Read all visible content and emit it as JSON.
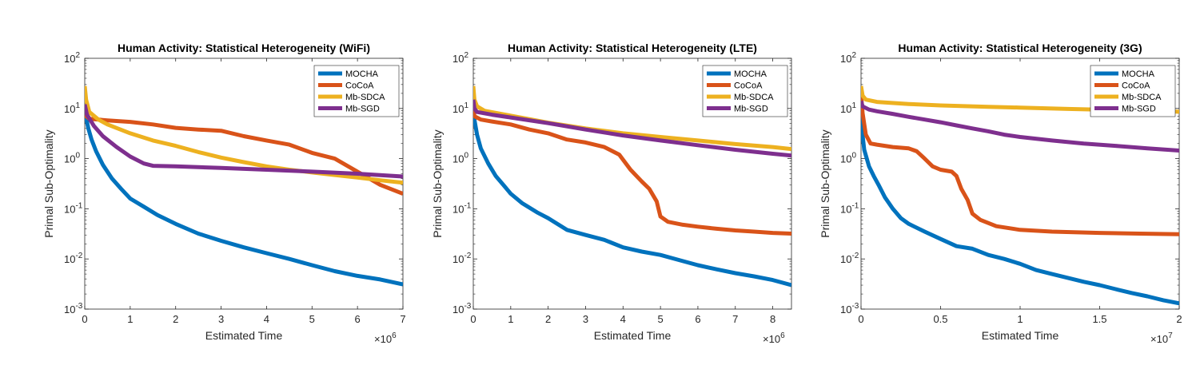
{
  "colors": {
    "MOCHA": "#0072BD",
    "CoCoA": "#D95319",
    "Mb-SDCA": "#EDB120",
    "Mb-SGD": "#7E2F8E"
  },
  "chart_data": [
    {
      "type": "line",
      "title": "Human Activity: Statistical Heterogeneity (WiFi)",
      "xlabel": "Estimated Time",
      "ylabel": "Primal Sub-Optimality",
      "x_multiplier_label": "×10",
      "x_multiplier_exp": "6",
      "xlim": [
        0,
        7000000
      ],
      "ylim": [
        0.001,
        100
      ],
      "yscale": "log",
      "xticks": [
        0,
        1000000,
        2000000,
        3000000,
        4000000,
        5000000,
        6000000,
        7000000
      ],
      "xtick_labels": [
        "0",
        "1",
        "2",
        "3",
        "4",
        "5",
        "6",
        "7"
      ],
      "yticks": [
        0.001,
        0.01,
        0.1,
        1,
        10,
        100
      ],
      "ytick_exps": [
        "-3",
        "-2",
        "-1",
        "0",
        "1",
        "2"
      ],
      "ytick_base": "10",
      "legend_position": "top-right",
      "series": [
        {
          "name": "MOCHA",
          "points": [
            [
              0,
              12
            ],
            [
              30000,
              6.5
            ],
            [
              80000,
              4
            ],
            [
              150000,
              2.4
            ],
            [
              250000,
              1.4
            ],
            [
              400000,
              0.75
            ],
            [
              600000,
              0.4
            ],
            [
              800000,
              0.25
            ],
            [
              1000000,
              0.16
            ],
            [
              1300000,
              0.11
            ],
            [
              1600000,
              0.075
            ],
            [
              2000000,
              0.05
            ],
            [
              2500000,
              0.032
            ],
            [
              3000000,
              0.023
            ],
            [
              3500000,
              0.017
            ],
            [
              4000000,
              0.013
            ],
            [
              4500000,
              0.01
            ],
            [
              5000000,
              0.0075
            ],
            [
              5500000,
              0.0057
            ],
            [
              6000000,
              0.0046
            ],
            [
              6500000,
              0.0039
            ],
            [
              7000000,
              0.0031
            ]
          ]
        },
        {
          "name": "CoCoA",
          "points": [
            [
              0,
              9
            ],
            [
              30000,
              7
            ],
            [
              100000,
              6.2
            ],
            [
              500000,
              5.8
            ],
            [
              1000000,
              5.4
            ],
            [
              1500000,
              4.8
            ],
            [
              2000000,
              4.1
            ],
            [
              2500000,
              3.8
            ],
            [
              3000000,
              3.6
            ],
            [
              3500000,
              2.8
            ],
            [
              4000000,
              2.3
            ],
            [
              4500000,
              1.9
            ],
            [
              5000000,
              1.3
            ],
            [
              5500000,
              1.0
            ],
            [
              6000000,
              0.55
            ],
            [
              6500000,
              0.3
            ],
            [
              7000000,
              0.2
            ]
          ]
        },
        {
          "name": "Mb-SDCA",
          "points": [
            [
              0,
              28
            ],
            [
              30000,
              15
            ],
            [
              100000,
              8.5
            ],
            [
              300000,
              6
            ],
            [
              500000,
              4.8
            ],
            [
              1000000,
              3.2
            ],
            [
              1500000,
              2.3
            ],
            [
              2000000,
              1.8
            ],
            [
              2500000,
              1.35
            ],
            [
              3000000,
              1.05
            ],
            [
              3500000,
              0.85
            ],
            [
              4000000,
              0.7
            ],
            [
              4500000,
              0.6
            ],
            [
              5000000,
              0.53
            ],
            [
              5500000,
              0.47
            ],
            [
              6000000,
              0.42
            ],
            [
              6500000,
              0.37
            ],
            [
              7000000,
              0.33
            ]
          ]
        },
        {
          "name": "Mb-SGD",
          "points": [
            [
              0,
              12
            ],
            [
              50000,
              7.5
            ],
            [
              200000,
              4.5
            ],
            [
              400000,
              2.8
            ],
            [
              700000,
              1.7
            ],
            [
              1000000,
              1.1
            ],
            [
              1300000,
              0.8
            ],
            [
              1500000,
              0.72
            ],
            [
              2000000,
              0.7
            ],
            [
              3000000,
              0.65
            ],
            [
              4000000,
              0.6
            ],
            [
              5000000,
              0.55
            ],
            [
              6000000,
              0.5
            ],
            [
              7000000,
              0.44
            ]
          ]
        }
      ]
    },
    {
      "type": "line",
      "title": "Human Activity: Statistical Heterogeneity (LTE)",
      "xlabel": "Estimated Time",
      "ylabel": "Primal Sub-Optimality",
      "x_multiplier_label": "×10",
      "x_multiplier_exp": "6",
      "xlim": [
        0,
        8500000
      ],
      "ylim": [
        0.001,
        100
      ],
      "yscale": "log",
      "xticks": [
        0,
        1000000,
        2000000,
        3000000,
        4000000,
        5000000,
        6000000,
        7000000,
        8000000
      ],
      "xtick_labels": [
        "0",
        "1",
        "2",
        "3",
        "4",
        "5",
        "6",
        "7",
        "8"
      ],
      "yticks": [
        0.001,
        0.01,
        0.1,
        1,
        10,
        100
      ],
      "ytick_exps": [
        "-3",
        "-2",
        "-1",
        "0",
        "1",
        "2"
      ],
      "ytick_base": "10",
      "legend_position": "top-right",
      "series": [
        {
          "name": "MOCHA",
          "points": [
            [
              0,
              12
            ],
            [
              30000,
              6
            ],
            [
              100000,
              3
            ],
            [
              200000,
              1.6
            ],
            [
              400000,
              0.8
            ],
            [
              600000,
              0.45
            ],
            [
              800000,
              0.3
            ],
            [
              1000000,
              0.2
            ],
            [
              1300000,
              0.13
            ],
            [
              1700000,
              0.085
            ],
            [
              2000000,
              0.065
            ],
            [
              2500000,
              0.038
            ],
            [
              3000000,
              0.03
            ],
            [
              3500000,
              0.024
            ],
            [
              4000000,
              0.017
            ],
            [
              4500000,
              0.014
            ],
            [
              5000000,
              0.012
            ],
            [
              5500000,
              0.0095
            ],
            [
              6000000,
              0.0075
            ],
            [
              6500000,
              0.0062
            ],
            [
              7000000,
              0.0052
            ],
            [
              7500000,
              0.0045
            ],
            [
              8000000,
              0.0038
            ],
            [
              8500000,
              0.003
            ]
          ]
        },
        {
          "name": "CoCoA",
          "points": [
            [
              0,
              12
            ],
            [
              30000,
              7
            ],
            [
              200000,
              6
            ],
            [
              500000,
              5.5
            ],
            [
              1000000,
              4.8
            ],
            [
              1500000,
              3.8
            ],
            [
              2000000,
              3.2
            ],
            [
              2500000,
              2.4
            ],
            [
              3000000,
              2.1
            ],
            [
              3500000,
              1.7
            ],
            [
              3900000,
              1.2
            ],
            [
              4200000,
              0.6
            ],
            [
              4500000,
              0.35
            ],
            [
              4700000,
              0.25
            ],
            [
              4900000,
              0.14
            ],
            [
              5000000,
              0.07
            ],
            [
              5200000,
              0.055
            ],
            [
              5600000,
              0.048
            ],
            [
              6000000,
              0.044
            ],
            [
              6500000,
              0.04
            ],
            [
              7000000,
              0.037
            ],
            [
              7500000,
              0.035
            ],
            [
              8000000,
              0.033
            ],
            [
              8500000,
              0.032
            ]
          ]
        },
        {
          "name": "Mb-SDCA",
          "points": [
            [
              0,
              28
            ],
            [
              30000,
              15
            ],
            [
              100000,
              11
            ],
            [
              300000,
              9
            ],
            [
              1000000,
              7.2
            ],
            [
              2000000,
              5.2
            ],
            [
              3000000,
              4.0
            ],
            [
              4000000,
              3.2
            ],
            [
              5000000,
              2.7
            ],
            [
              6000000,
              2.3
            ],
            [
              7000000,
              1.95
            ],
            [
              8000000,
              1.7
            ],
            [
              8500000,
              1.55
            ]
          ]
        },
        {
          "name": "Mb-SGD",
          "points": [
            [
              0,
              15
            ],
            [
              30000,
              10
            ],
            [
              100000,
              8.5
            ],
            [
              500000,
              7.5
            ],
            [
              1000000,
              6.6
            ],
            [
              2000000,
              5.1
            ],
            [
              3000000,
              3.8
            ],
            [
              4000000,
              2.9
            ],
            [
              5000000,
              2.3
            ],
            [
              6000000,
              1.85
            ],
            [
              7000000,
              1.5
            ],
            [
              8000000,
              1.25
            ],
            [
              8500000,
              1.15
            ]
          ]
        }
      ]
    },
    {
      "type": "line",
      "title": "Human Activity: Statistical Heterogeneity (3G)",
      "xlabel": "Estimated Time",
      "ylabel": "Primal Sub-Optimality",
      "x_multiplier_label": "×10",
      "x_multiplier_exp": "7",
      "xlim": [
        0,
        20000000
      ],
      "ylim": [
        0.001,
        100
      ],
      "yscale": "log",
      "xticks": [
        0,
        5000000,
        10000000,
        15000000,
        20000000
      ],
      "xtick_labels": [
        "0",
        "0.5",
        "1",
        "1.5",
        "2"
      ],
      "yticks": [
        0.001,
        0.01,
        0.1,
        1,
        10,
        100
      ],
      "ytick_exps": [
        "-3",
        "-2",
        "-1",
        "0",
        "1",
        "2"
      ],
      "ytick_base": "10",
      "legend_position": "top-right",
      "series": [
        {
          "name": "MOCHA",
          "points": [
            [
              0,
              8
            ],
            [
              50000,
              4
            ],
            [
              200000,
              1.5
            ],
            [
              500000,
              0.7
            ],
            [
              800000,
              0.45
            ],
            [
              1100000,
              0.3
            ],
            [
              1500000,
              0.17
            ],
            [
              2000000,
              0.1
            ],
            [
              2500000,
              0.065
            ],
            [
              3000000,
              0.05
            ],
            [
              4000000,
              0.035
            ],
            [
              5000000,
              0.025
            ],
            [
              6000000,
              0.018
            ],
            [
              7000000,
              0.016
            ],
            [
              8000000,
              0.012
            ],
            [
              9000000,
              0.01
            ],
            [
              10000000,
              0.008
            ],
            [
              11000000,
              0.006
            ],
            [
              12000000,
              0.005
            ],
            [
              13000000,
              0.0042
            ],
            [
              14000000,
              0.0035
            ],
            [
              15000000,
              0.003
            ],
            [
              16000000,
              0.0025
            ],
            [
              17000000,
              0.0021
            ],
            [
              18000000,
              0.0018
            ],
            [
              19000000,
              0.0015
            ],
            [
              20000000,
              0.0013
            ]
          ]
        },
        {
          "name": "CoCoA",
          "points": [
            [
              0,
              20
            ],
            [
              100000,
              8
            ],
            [
              300000,
              3
            ],
            [
              600000,
              2
            ],
            [
              1000000,
              1.9
            ],
            [
              2000000,
              1.7
            ],
            [
              3000000,
              1.6
            ],
            [
              3500000,
              1.4
            ],
            [
              4000000,
              1.0
            ],
            [
              4500000,
              0.7
            ],
            [
              5000000,
              0.6
            ],
            [
              5700000,
              0.55
            ],
            [
              6000000,
              0.45
            ],
            [
              6300000,
              0.25
            ],
            [
              6700000,
              0.15
            ],
            [
              7000000,
              0.08
            ],
            [
              7500000,
              0.06
            ],
            [
              8500000,
              0.045
            ],
            [
              10000000,
              0.038
            ],
            [
              12000000,
              0.035
            ],
            [
              15000000,
              0.033
            ],
            [
              17500000,
              0.032
            ],
            [
              20000000,
              0.031
            ]
          ]
        },
        {
          "name": "Mb-SDCA",
          "points": [
            [
              0,
              28
            ],
            [
              100000,
              18
            ],
            [
              300000,
              15
            ],
            [
              1000000,
              13.5
            ],
            [
              3000000,
              12.3
            ],
            [
              5000000,
              11.5
            ],
            [
              8000000,
              10.8
            ],
            [
              10000000,
              10.4
            ],
            [
              13000000,
              9.8
            ],
            [
              16000000,
              9.3
            ],
            [
              18000000,
              9.0
            ],
            [
              20000000,
              8.6
            ]
          ]
        },
        {
          "name": "Mb-SGD",
          "points": [
            [
              0,
              14
            ],
            [
              100000,
              11
            ],
            [
              500000,
              9.5
            ],
            [
              1000000,
              8.8
            ],
            [
              2000000,
              7.8
            ],
            [
              3000000,
              6.8
            ],
            [
              4000000,
              6.0
            ],
            [
              5000000,
              5.3
            ],
            [
              6000000,
              4.6
            ],
            [
              7000000,
              4.0
            ],
            [
              8000000,
              3.5
            ],
            [
              9000000,
              3.0
            ],
            [
              10000000,
              2.7
            ],
            [
              12000000,
              2.3
            ],
            [
              14000000,
              2.0
            ],
            [
              16000000,
              1.8
            ],
            [
              18000000,
              1.6
            ],
            [
              20000000,
              1.45
            ]
          ]
        }
      ]
    }
  ]
}
